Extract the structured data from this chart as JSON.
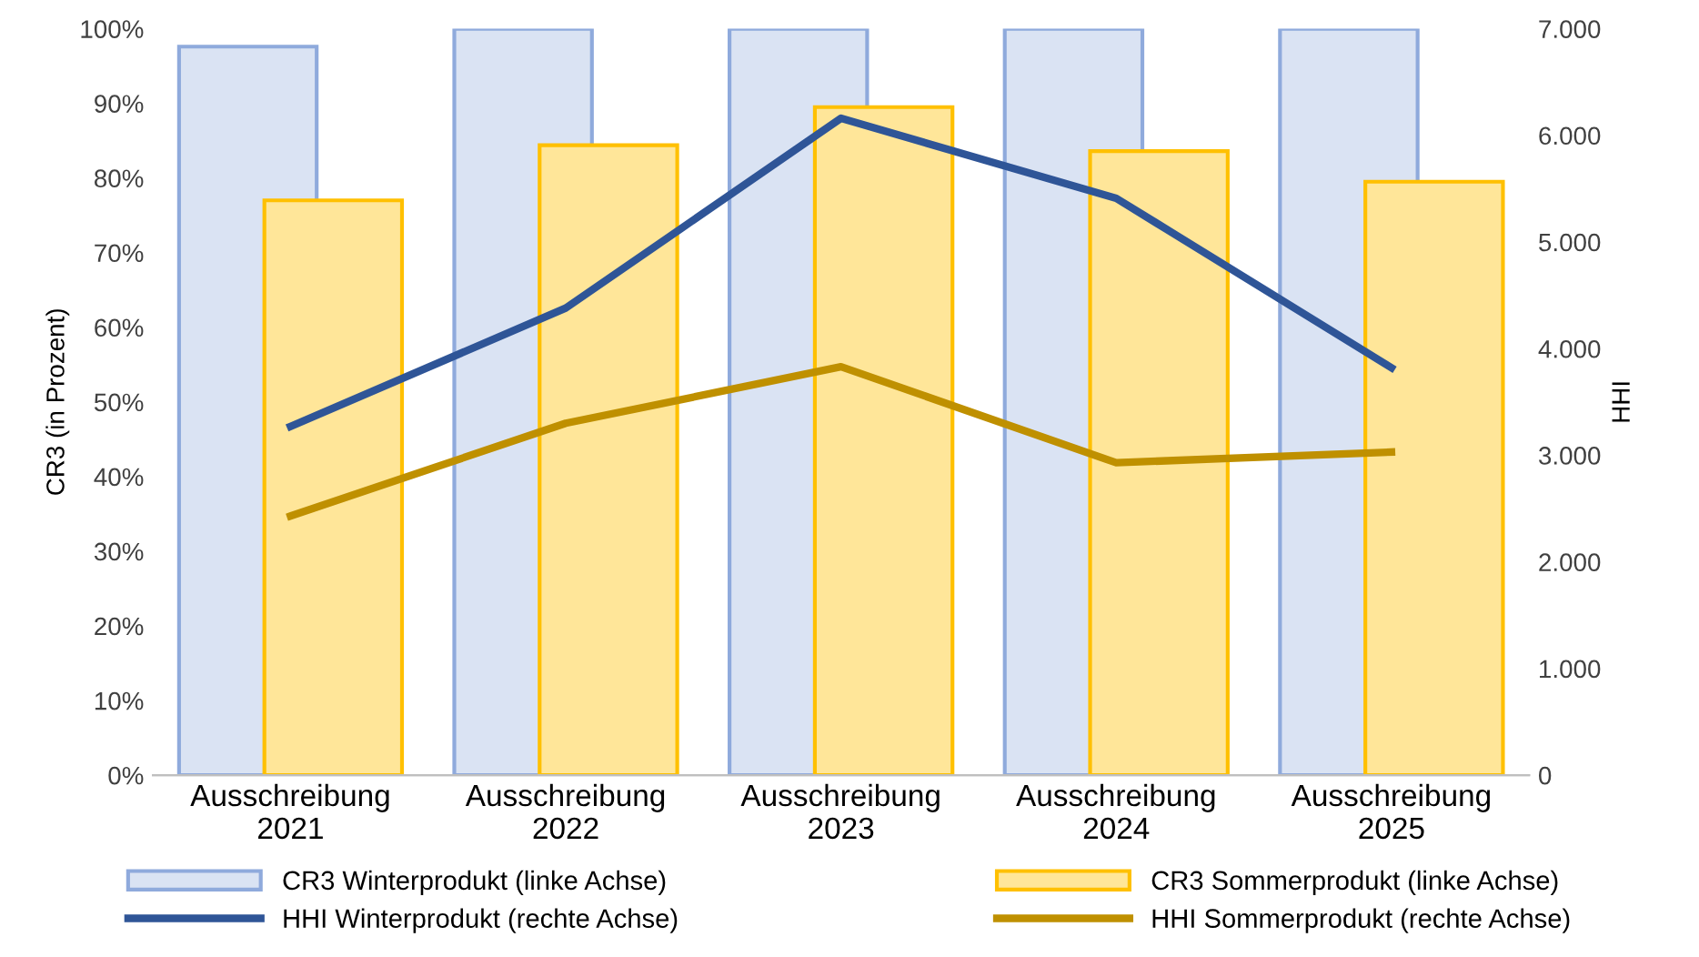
{
  "chart_data": {
    "type": "bar",
    "categories": [
      "Ausschreibung\n2021",
      "Ausschreibung\n2022",
      "Ausschreibung\n2023",
      "Ausschreibung\n2024",
      "Ausschreibung\n2025"
    ],
    "ylabel": "CR3 (in Prozent)",
    "y2label": "HHI",
    "ylim": [
      0,
      100
    ],
    "yticks": [
      {
        "value": 0,
        "label": "0%"
      },
      {
        "value": 10,
        "label": "10%"
      },
      {
        "value": 20,
        "label": "20%"
      },
      {
        "value": 30,
        "label": "30%"
      },
      {
        "value": 40,
        "label": "40%"
      },
      {
        "value": 50,
        "label": "50%"
      },
      {
        "value": 60,
        "label": "60%"
      },
      {
        "value": 70,
        "label": "70%"
      },
      {
        "value": 80,
        "label": "80%"
      },
      {
        "value": 90,
        "label": "90%"
      },
      {
        "value": 100,
        "label": "100%"
      }
    ],
    "y2lim": [
      0,
      7000
    ],
    "y2ticks": [
      {
        "value": 0,
        "label": "0"
      },
      {
        "value": 1000,
        "label": "1.000"
      },
      {
        "value": 2000,
        "label": "2.000"
      },
      {
        "value": 3000,
        "label": "3.000"
      },
      {
        "value": 4000,
        "label": "4.000"
      },
      {
        "value": 5000,
        "label": "5.000"
      },
      {
        "value": 6000,
        "label": "6.000"
      },
      {
        "value": 7000,
        "label": "7.000"
      }
    ],
    "grid": false,
    "legend": "bottom",
    "series": [
      {
        "name": "CR3 Winterprodukt (linke Achse)",
        "color": "#dae3f3",
        "values": [
          97.6,
          100,
          100,
          100,
          100
        ]
      },
      {
        "name": "CR3 Sommerprodukt (linke Achse)",
        "color": "#ffe699",
        "values": [
          77.0,
          84.4,
          89.5,
          83.6,
          79.5
        ]
      },
      {
        "name": "HHI Winterprodukt (rechte Achse)",
        "type": "line",
        "axis": "y2",
        "color": "#2f5597",
        "values": [
          3270,
          4380,
          6160,
          5410,
          3820
        ]
      },
      {
        "name": "HHI Sommerprodukt (rechte Achse)",
        "type": "line",
        "axis": "y2",
        "color": "#bf9000",
        "values": [
          2430,
          3300,
          3830,
          2930,
          3030
        ]
      }
    ]
  }
}
